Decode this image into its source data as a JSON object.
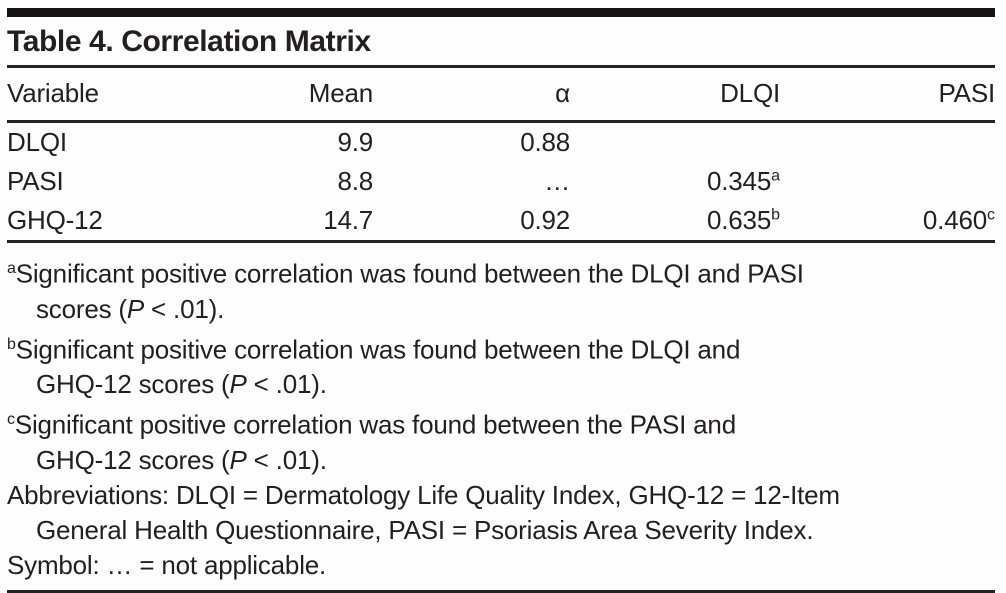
{
  "meta": {
    "ink_color": "#231f20",
    "background_color": "#fdfdfd"
  },
  "table": {
    "title": "Table 4. Correlation Matrix",
    "columns": {
      "variable": "Variable",
      "mean": "Mean",
      "alpha": "α",
      "dlqi": "DLQI",
      "pasi": "PASI"
    },
    "rows": [
      {
        "variable": "DLQI",
        "mean": "9.9",
        "alpha": "0.88",
        "dlqi": "",
        "dlqi_sup": "",
        "pasi": "",
        "pasi_sup": ""
      },
      {
        "variable": "PASI",
        "mean": "8.8",
        "alpha": "…",
        "dlqi": "0.345",
        "dlqi_sup": "a",
        "pasi": "",
        "pasi_sup": ""
      },
      {
        "variable": "GHQ-12",
        "mean": "14.7",
        "alpha": "0.92",
        "dlqi": "0.635",
        "dlqi_sup": "b",
        "pasi": "0.460",
        "pasi_sup": "c"
      }
    ]
  },
  "footnotes": {
    "a": {
      "marker": "a",
      "line1": "Significant positive correlation was found between the DLQI and PASI",
      "line2_pre": "scores (",
      "stat": "P",
      "line2_post": " < .01)."
    },
    "b": {
      "marker": "b",
      "line1": "Significant positive correlation was found between the DLQI and",
      "line2_pre": "GHQ-12 scores (",
      "stat": "P",
      "line2_post": " < .01)."
    },
    "c": {
      "marker": "c",
      "line1": "Significant positive correlation was found between the PASI and",
      "line2_pre": "GHQ-12 scores (",
      "stat": "P",
      "line2_post": " < .01)."
    },
    "abbreviations": {
      "line1": "Abbreviations: DLQI = Dermatology Life Quality Index, GHQ-12 = 12-Item",
      "line2": "General Health Questionnaire, PASI = Psoriasis Area Severity Index."
    },
    "symbol": "Symbol: … = not applicable."
  }
}
